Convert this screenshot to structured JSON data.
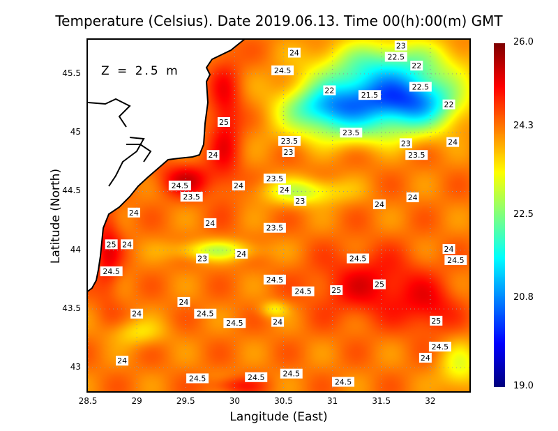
{
  "chart_data": {
    "type": "heatmap",
    "title": "Temperature (Celsius). Date 2019.06.13. Time 00(h):00(m)  GMT",
    "xlabel": "Langitude (East)",
    "ylabel": "Latitude (North)",
    "depth_label": "Z = 2.5 m",
    "xlim": [
      28.5,
      32.4
    ],
    "ylim": [
      42.8,
      45.79
    ],
    "xticks": [
      "28.5",
      "29",
      "29.5",
      "30",
      "30.5",
      "31",
      "31.5",
      "32"
    ],
    "xtick_values": [
      28.5,
      29,
      29.5,
      30,
      30.5,
      31,
      31.5,
      32
    ],
    "yticks": [
      "43",
      "43.5",
      "44",
      "44.5",
      "45",
      "45.5"
    ],
    "ytick_values": [
      43,
      43.5,
      44,
      44.5,
      45,
      45.5
    ],
    "grid": true,
    "colorbar": {
      "min": 19.0,
      "max": 26.0,
      "ticks": [
        "19.0",
        "20.8",
        "22.5",
        "24.3",
        "26.0"
      ],
      "tick_values": [
        19.0,
        20.8,
        22.5,
        24.3,
        26.0
      ],
      "colormap": "jet"
    },
    "contour_labels": [
      {
        "lon": 30.61,
        "lat": 45.68,
        "value": "24"
      },
      {
        "lon": 30.49,
        "lat": 45.53,
        "value": "24.5"
      },
      {
        "lon": 31.7,
        "lat": 45.74,
        "value": "23"
      },
      {
        "lon": 31.65,
        "lat": 45.69,
        "value": "22.5"
      },
      {
        "lon": 31.86,
        "lat": 45.57,
        "value": "22"
      },
      {
        "lon": 30.97,
        "lat": 45.36,
        "value": "22"
      },
      {
        "lon": 31.38,
        "lat": 45.32,
        "value": "21.5"
      },
      {
        "lon": 31.9,
        "lat": 45.39,
        "value": "22.5"
      },
      {
        "lon": 32.19,
        "lat": 45.24,
        "value": "22"
      },
      {
        "lon": 29.89,
        "lat": 45.09,
        "value": "25"
      },
      {
        "lon": 31.19,
        "lat": 45.0,
        "value": "23.5"
      },
      {
        "lon": 30.56,
        "lat": 44.93,
        "value": "23.5"
      },
      {
        "lon": 30.55,
        "lat": 44.89,
        "value": "23"
      },
      {
        "lon": 31.75,
        "lat": 44.91,
        "value": "23"
      },
      {
        "lon": 31.86,
        "lat": 44.81,
        "value": "23.5"
      },
      {
        "lon": 32.23,
        "lat": 44.92,
        "value": "24"
      },
      {
        "lon": 29.78,
        "lat": 44.81,
        "value": "24"
      },
      {
        "lon": 30.41,
        "lat": 44.61,
        "value": "23.5"
      },
      {
        "lon": 30.51,
        "lat": 44.62,
        "value": "24"
      },
      {
        "lon": 29.44,
        "lat": 44.55,
        "value": "24.5"
      },
      {
        "lon": 30.04,
        "lat": 44.55,
        "value": "24"
      },
      {
        "lon": 29.56,
        "lat": 44.47,
        "value": "23.5"
      },
      {
        "lon": 30.67,
        "lat": 44.42,
        "value": "23"
      },
      {
        "lon": 31.48,
        "lat": 44.39,
        "value": "24"
      },
      {
        "lon": 31.82,
        "lat": 44.45,
        "value": "24"
      },
      {
        "lon": 28.97,
        "lat": 44.32,
        "value": "24"
      },
      {
        "lon": 29.75,
        "lat": 44.23,
        "value": "24"
      },
      {
        "lon": 30.41,
        "lat": 44.19,
        "value": "23.5"
      },
      {
        "lon": 28.74,
        "lat": 44.05,
        "value": "25"
      },
      {
        "lon": 28.9,
        "lat": 44.05,
        "value": "24"
      },
      {
        "lon": 30.07,
        "lat": 43.97,
        "value": "24"
      },
      {
        "lon": 29.67,
        "lat": 43.93,
        "value": "23"
      },
      {
        "lon": 32.19,
        "lat": 44.01,
        "value": "24"
      },
      {
        "lon": 32.26,
        "lat": 43.96,
        "value": "24.5"
      },
      {
        "lon": 31.26,
        "lat": 43.93,
        "value": "24.5"
      },
      {
        "lon": 28.74,
        "lat": 43.82,
        "value": "24.5"
      },
      {
        "lon": 30.41,
        "lat": 43.75,
        "value": "24.5"
      },
      {
        "lon": 31.48,
        "lat": 43.71,
        "value": "25"
      },
      {
        "lon": 31.04,
        "lat": 43.66,
        "value": "25"
      },
      {
        "lon": 30.7,
        "lat": 43.65,
        "value": "24.5"
      },
      {
        "lon": 29.48,
        "lat": 43.56,
        "value": "24"
      },
      {
        "lon": 29.7,
        "lat": 43.46,
        "value": "24.5"
      },
      {
        "lon": 29.0,
        "lat": 43.46,
        "value": "24"
      },
      {
        "lon": 30.44,
        "lat": 43.39,
        "value": "24"
      },
      {
        "lon": 30.0,
        "lat": 43.38,
        "value": "24.5"
      },
      {
        "lon": 32.06,
        "lat": 43.4,
        "value": "25"
      },
      {
        "lon": 32.1,
        "lat": 43.18,
        "value": "24.5"
      },
      {
        "lon": 31.95,
        "lat": 43.11,
        "value": "24"
      },
      {
        "lon": 28.85,
        "lat": 43.06,
        "value": "24"
      },
      {
        "lon": 30.58,
        "lat": 42.95,
        "value": "24.5"
      },
      {
        "lon": 30.22,
        "lat": 42.92,
        "value": "24.5"
      },
      {
        "lon": 29.62,
        "lat": 42.91,
        "value": "24.5"
      },
      {
        "lon": 31.11,
        "lat": 42.88,
        "value": "24.5"
      }
    ]
  }
}
